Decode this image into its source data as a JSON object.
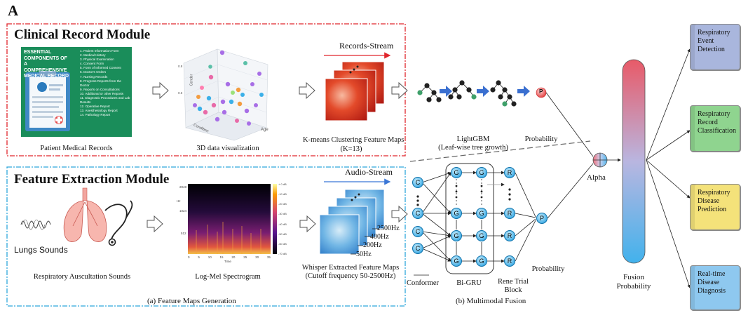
{
  "figure_label": "A",
  "clinical": {
    "title": "Clinical Record Module",
    "patient_caption": "Patient Medical Records",
    "viz_caption": "3D data visualization",
    "stream_label": "Records-Stream",
    "kmeans_caption_1": "K-means  Clustering Feature Maps",
    "kmeans_caption_2": "(K=13)",
    "lgbm_caption_1": "LightGBM",
    "lgbm_caption_2": "(Leaf-wise  tree growth)",
    "prob_caption": "Probability",
    "prob_node": "P",
    "record_card": {
      "heading_lines": [
        "ESSENTIAL",
        "COMPONENTS OF A",
        "COMPREHENSIVE",
        "MEDICAL RECORD"
      ],
      "items": [
        "1. Patient Information Form",
        "2. Medical History",
        "3. Physical Examination",
        "4. Consent Form",
        "5. Form of Informed Consent",
        "6. Doctor's Orders",
        "7. Nursing Records",
        "8. Progress Reports from the Doctor",
        "9. Reports on Consultations",
        "10. Additional or other Reports",
        "11. Diagnostic Procedures and Lab Results",
        "12. Operative Report",
        "13. Anesthesiology Report",
        "14. Pathology Report"
      ]
    },
    "scatter_axes": {
      "x": "Gender",
      "y": "Age",
      "z": "Condition",
      "ticks_left": "0.8",
      "ticks_left2": "0.6"
    }
  },
  "feature": {
    "title": "Feature Extraction Module",
    "lungs_label": "Lungs Sounds",
    "lungs_caption": "Respiratory Auscultation Sounds",
    "spec_caption": "Log-Mel Spectrogram",
    "spec_y_ticks": [
      "2048",
      "1024",
      "512"
    ],
    "spec_y_label": "Hz",
    "spec_x_ticks": [
      "0",
      "5",
      "10",
      "15",
      "20",
      "25",
      "30",
      "35"
    ],
    "spec_x_label": "Time",
    "spec_cb_ticks": [
      "+ 0 dB",
      "-10 dB",
      "-20 dB",
      "-30 dB",
      "-40 dB",
      "-50 dB",
      "-60 dB",
      "-70 dB"
    ],
    "stream_label": "Audio-Stream",
    "whisper_caption_1": "Whisper Extracted Feature Maps",
    "whisper_caption_2": "(Cutoff frequency 50-2500Hz)",
    "freqs": [
      "2500Hz",
      "400Hz",
      "200Hz",
      "50Hz"
    ],
    "section_caption": "(a) Feature  Maps Generation"
  },
  "fusion": {
    "conformer_label": "Conformer",
    "bigru_label": "Bi-GRU",
    "rene_label_1": "Rene Trial",
    "rene_label_2": "Block",
    "prob_caption": "Probability",
    "prob_node": "P",
    "alpha_label": "Alpha",
    "section_caption": "(b) Multimodal  Fusion",
    "fusion_label_1": "Fusion",
    "fusion_label_2": "Probability",
    "node_c": "C",
    "node_g": "G",
    "node_r": "R"
  },
  "outputs": [
    {
      "lines": [
        "Respiratory",
        "Event",
        "Detection"
      ],
      "color": "#a9b6dd"
    },
    {
      "lines": [
        "Respiratory",
        "Record",
        "Classification"
      ],
      "color": "#8fd48f"
    },
    {
      "lines": [
        "Respiratory",
        "Disease",
        "Prediction"
      ],
      "color": "#f4e27a"
    },
    {
      "lines": [
        "Real-time",
        "Disease",
        "Diagnosis"
      ],
      "color": "#8ec8ef"
    }
  ],
  "colors": {
    "red_border": "#e0262c",
    "blue_border": "#2fa7dc",
    "stream_red": "#e0262c",
    "stream_blue": "#3b77d6",
    "arrow_blue": "#3a6fd0"
  }
}
